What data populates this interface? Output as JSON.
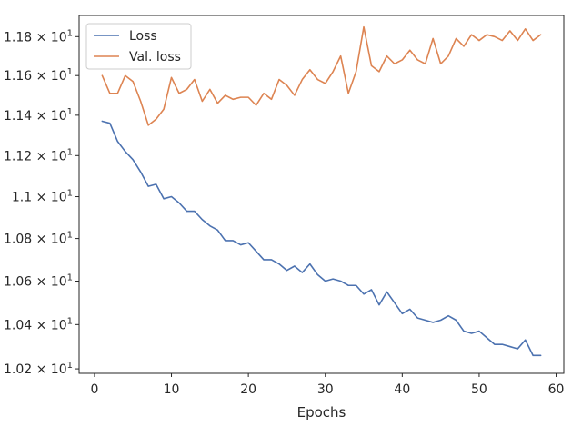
{
  "chart_data": {
    "type": "line",
    "xlabel": "Epochs",
    "ylabel": "",
    "xlim": [
      -2,
      61
    ],
    "ylim": [
      10.18,
      11.91
    ],
    "yscale": "log",
    "x_ticks": [
      0,
      10,
      20,
      30,
      40,
      50,
      60
    ],
    "x_tick_labels": [
      "0",
      "10",
      "20",
      "30",
      "40",
      "50",
      "60"
    ],
    "y_ticks": [
      10.2,
      10.4,
      10.6,
      10.8,
      11.0,
      11.2,
      11.4,
      11.6,
      11.8
    ],
    "y_tick_labels": [
      {
        "mant": "1.02",
        "base": "10",
        "exp": "1"
      },
      {
        "mant": "1.04",
        "base": "10",
        "exp": "1"
      },
      {
        "mant": "1.06",
        "base": "10",
        "exp": "1"
      },
      {
        "mant": "1.08",
        "base": "10",
        "exp": "1"
      },
      {
        "mant": "1.1",
        "base": "10",
        "exp": "1"
      },
      {
        "mant": "1.12",
        "base": "10",
        "exp": "1"
      },
      {
        "mant": "1.14",
        "base": "10",
        "exp": "1"
      },
      {
        "mant": "1.16",
        "base": "10",
        "exp": "1"
      },
      {
        "mant": "1.18",
        "base": "10",
        "exp": "1"
      }
    ],
    "grid": false,
    "legend_position": "top-left",
    "series": [
      {
        "name": "Loss",
        "color": "#4c72b0",
        "x": [
          1,
          2,
          3,
          4,
          5,
          6,
          7,
          8,
          9,
          10,
          11,
          12,
          13,
          14,
          15,
          16,
          17,
          18,
          19,
          20,
          21,
          22,
          23,
          24,
          25,
          26,
          27,
          28,
          29,
          30,
          31,
          32,
          33,
          34,
          35,
          36,
          37,
          38,
          39,
          40,
          41,
          42,
          43,
          44,
          45,
          46,
          47,
          48,
          49,
          50,
          51,
          52,
          53,
          54,
          55,
          56,
          57,
          58
        ],
        "values": [
          11.37,
          11.36,
          11.27,
          11.22,
          11.18,
          11.12,
          11.05,
          11.06,
          10.99,
          11.0,
          10.97,
          10.93,
          10.93,
          10.89,
          10.86,
          10.84,
          10.79,
          10.79,
          10.77,
          10.78,
          10.74,
          10.7,
          10.7,
          10.68,
          10.65,
          10.67,
          10.64,
          10.68,
          10.63,
          10.6,
          10.61,
          10.6,
          10.58,
          10.58,
          10.54,
          10.56,
          10.49,
          10.55,
          10.5,
          10.45,
          10.47,
          10.43,
          10.42,
          10.41,
          10.42,
          10.44,
          10.42,
          10.37,
          10.36,
          10.37,
          10.34,
          10.31,
          10.31,
          10.3,
          10.29,
          10.33,
          10.26,
          10.26
        ]
      },
      {
        "name": "Val. loss",
        "color": "#dd8452",
        "x": [
          1,
          2,
          3,
          4,
          5,
          6,
          7,
          8,
          9,
          10,
          11,
          12,
          13,
          14,
          15,
          16,
          17,
          18,
          19,
          20,
          21,
          22,
          23,
          24,
          25,
          26,
          27,
          28,
          29,
          30,
          31,
          32,
          33,
          34,
          35,
          36,
          37,
          38,
          39,
          40,
          41,
          42,
          43,
          44,
          45,
          46,
          47,
          48,
          49,
          50,
          51,
          52,
          53,
          54,
          55,
          56,
          57,
          58
        ],
        "values": [
          11.6,
          11.51,
          11.51,
          11.6,
          11.57,
          11.47,
          11.35,
          11.38,
          11.43,
          11.59,
          11.51,
          11.53,
          11.58,
          11.47,
          11.53,
          11.46,
          11.5,
          11.48,
          11.49,
          11.49,
          11.45,
          11.51,
          11.48,
          11.58,
          11.55,
          11.5,
          11.58,
          11.63,
          11.58,
          11.56,
          11.62,
          11.7,
          11.51,
          11.62,
          11.85,
          11.65,
          11.62,
          11.7,
          11.66,
          11.68,
          11.73,
          11.68,
          11.66,
          11.79,
          11.66,
          11.7,
          11.79,
          11.75,
          11.81,
          11.78,
          11.81,
          11.8,
          11.78,
          11.83,
          11.78,
          11.84,
          11.78,
          11.81
        ]
      }
    ]
  }
}
